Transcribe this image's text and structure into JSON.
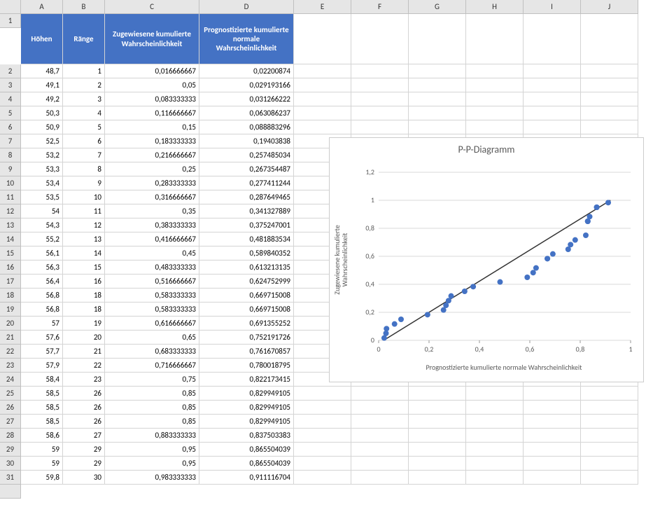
{
  "columns": [
    "A",
    "B",
    "C",
    "D",
    "E",
    "F",
    "G",
    "H",
    "I",
    "J"
  ],
  "headers": [
    "Höhen",
    "Ränge",
    "Zugewiesene kumulierte Wahrscheinlichkeit",
    "Prognostizierte kumulierte normale Wahrscheinlichkeit"
  ],
  "rows": [
    [
      "48,7",
      "1",
      "0,016666667",
      "0,02200874"
    ],
    [
      "49,1",
      "2",
      "0,05",
      "0,029193166"
    ],
    [
      "49,2",
      "3",
      "0,083333333",
      "0,031266222"
    ],
    [
      "50,3",
      "4",
      "0,116666667",
      "0,063086237"
    ],
    [
      "50,9",
      "5",
      "0,15",
      "0,088883296"
    ],
    [
      "52,5",
      "6",
      "0,183333333",
      "0,19403838"
    ],
    [
      "53,2",
      "7",
      "0,216666667",
      "0,257485034"
    ],
    [
      "53,3",
      "8",
      "0,25",
      "0,267354487"
    ],
    [
      "53,4",
      "9",
      "0,283333333",
      "0,277411244"
    ],
    [
      "53,5",
      "10",
      "0,316666667",
      "0,287649465"
    ],
    [
      "54",
      "11",
      "0,35",
      "0,341327889"
    ],
    [
      "54,3",
      "12",
      "0,383333333",
      "0,375247001"
    ],
    [
      "55,2",
      "13",
      "0,416666667",
      "0,481883534"
    ],
    [
      "56,1",
      "14",
      "0,45",
      "0,589840352"
    ],
    [
      "56,3",
      "15",
      "0,483333333",
      "0,613213135"
    ],
    [
      "56,4",
      "16",
      "0,516666667",
      "0,624752999"
    ],
    [
      "56,8",
      "18",
      "0,583333333",
      "0,669715008"
    ],
    [
      "56,8",
      "18",
      "0,583333333",
      "0,669715008"
    ],
    [
      "57",
      "19",
      "0,616666667",
      "0,691355252"
    ],
    [
      "57,6",
      "20",
      "0,65",
      "0,752191726"
    ],
    [
      "57,7",
      "21",
      "0,683333333",
      "0,761670857"
    ],
    [
      "57,9",
      "22",
      "0,716666667",
      "0,780018795"
    ],
    [
      "58,4",
      "23",
      "0,75",
      "0,822173415"
    ],
    [
      "58,5",
      "26",
      "0,85",
      "0,829949105"
    ],
    [
      "58,5",
      "26",
      "0,85",
      "0,829949105"
    ],
    [
      "58,5",
      "26",
      "0,85",
      "0,829949105"
    ],
    [
      "58,6",
      "27",
      "0,883333333",
      "0,837503383"
    ],
    [
      "59",
      "29",
      "0,95",
      "0,865504039"
    ],
    [
      "59",
      "29",
      "0,95",
      "0,865504039"
    ],
    [
      "59,8",
      "30",
      "0,983333333",
      "0,911116704"
    ]
  ],
  "chart": {
    "title": "P-P-Diagramm",
    "xlabel": "Prognostizierte kumulierte normale Wahrscheinlichkeit",
    "ylabel": "Zugewiesene kumulierte\nWahrscheinlichkeit",
    "xlim": [
      0,
      1
    ],
    "ylim": [
      0,
      1.2
    ],
    "xticks": [
      0,
      0.2,
      0.4,
      0.6,
      0.8,
      1
    ],
    "yticks": [
      0,
      0.2,
      0.4,
      0.6,
      0.8,
      1,
      1.2
    ],
    "xtick_labels": [
      "0",
      "0,2",
      "0,4",
      "0,6",
      "0,8",
      "1"
    ],
    "ytick_labels": [
      "0",
      "0,2",
      "0,4",
      "0,6",
      "0,8",
      "1",
      "1,2"
    ],
    "marker_color": "#4472c4",
    "line_color": "#333333",
    "grid_color": "#d9d9d9",
    "background": "#ffffff",
    "marker_size": 4,
    "points": [
      [
        0.02200874,
        0.016666667
      ],
      [
        0.029193166,
        0.05
      ],
      [
        0.031266222,
        0.083333333
      ],
      [
        0.063086237,
        0.116666667
      ],
      [
        0.088883296,
        0.15
      ],
      [
        0.19403838,
        0.183333333
      ],
      [
        0.257485034,
        0.216666667
      ],
      [
        0.267354487,
        0.25
      ],
      [
        0.277411244,
        0.283333333
      ],
      [
        0.287649465,
        0.316666667
      ],
      [
        0.341327889,
        0.35
      ],
      [
        0.375247001,
        0.383333333
      ],
      [
        0.481883534,
        0.416666667
      ],
      [
        0.589840352,
        0.45
      ],
      [
        0.613213135,
        0.483333333
      ],
      [
        0.624752999,
        0.516666667
      ],
      [
        0.669715008,
        0.583333333
      ],
      [
        0.669715008,
        0.583333333
      ],
      [
        0.691355252,
        0.616666667
      ],
      [
        0.752191726,
        0.65
      ],
      [
        0.761670857,
        0.683333333
      ],
      [
        0.780018795,
        0.716666667
      ],
      [
        0.822173415,
        0.75
      ],
      [
        0.829949105,
        0.85
      ],
      [
        0.829949105,
        0.85
      ],
      [
        0.829949105,
        0.85
      ],
      [
        0.837503383,
        0.883333333
      ],
      [
        0.865504039,
        0.95
      ],
      [
        0.865504039,
        0.95
      ],
      [
        0.911116704,
        0.983333333
      ]
    ],
    "trend": [
      [
        0.02,
        0.0
      ],
      [
        0.92,
        1.0
      ]
    ]
  }
}
